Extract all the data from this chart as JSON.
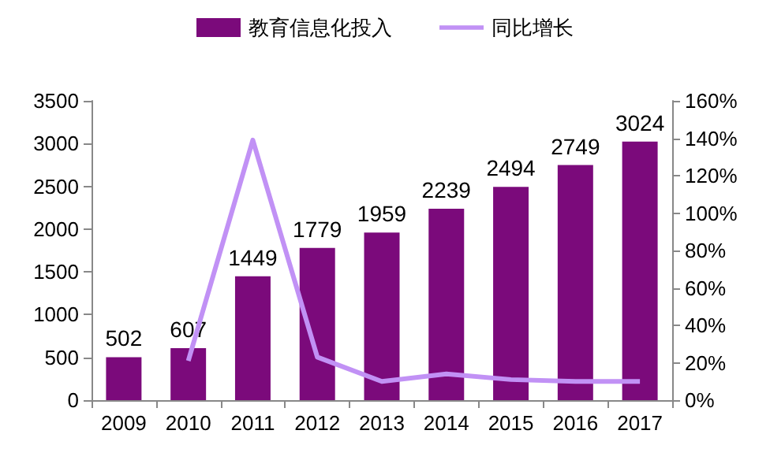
{
  "chart_data": {
    "type": "bar",
    "categories": [
      "2009",
      "2010",
      "2011",
      "2012",
      "2013",
      "2014",
      "2015",
      "2016",
      "2017"
    ],
    "series": [
      {
        "name": "教育信息化投入",
        "color": "#7b0a7b",
        "values": [
          502,
          607,
          1449,
          1779,
          1959,
          2239,
          2494,
          2749,
          3024
        ],
        "value_labels": [
          "502",
          "607",
          "1449",
          "1779",
          "1959",
          "2239",
          "2494",
          "2749",
          "3024"
        ]
      },
      {
        "name": "同比增长",
        "type": "line",
        "axis": "y2",
        "color": "#c191f5",
        "values": [
          null,
          21,
          139,
          23,
          10,
          14,
          11,
          10,
          10
        ]
      }
    ],
    "ylim": [
      0,
      3500
    ],
    "yticks": [
      0,
      500,
      1000,
      1500,
      2000,
      2500,
      3000,
      3500
    ],
    "y2lim": [
      0,
      160
    ],
    "y2ticks": [
      {
        "value": 0,
        "label": "0%"
      },
      {
        "value": 20,
        "label": "20%"
      },
      {
        "value": 40,
        "label": "40%"
      },
      {
        "value": 60,
        "label": "60%"
      },
      {
        "value": 80,
        "label": "80%"
      },
      {
        "value": 100,
        "label": "100%"
      },
      {
        "value": 120,
        "label": "120%"
      },
      {
        "value": 140,
        "label": "140%"
      },
      {
        "value": 160,
        "label": "160%"
      }
    ],
    "grid": false,
    "legend": "top",
    "marker": "none",
    "line_style": "solid"
  }
}
